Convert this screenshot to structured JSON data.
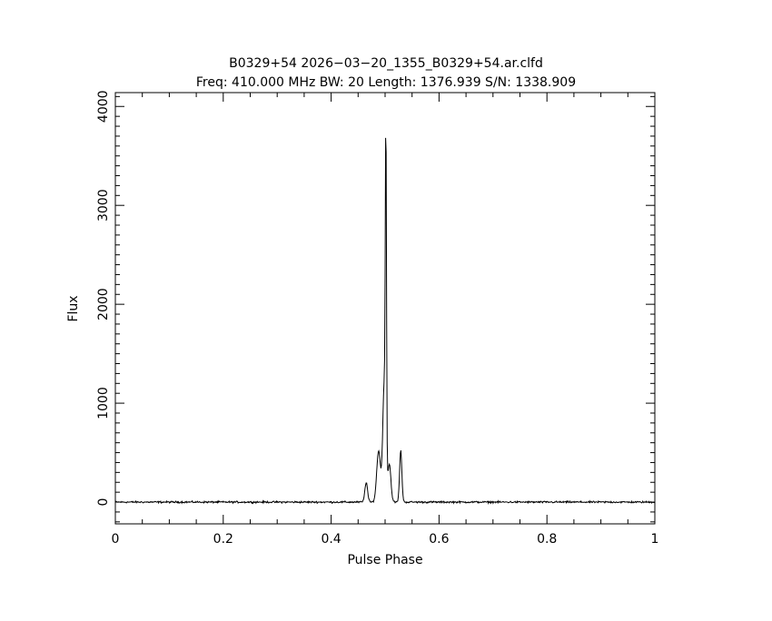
{
  "chart_data": {
    "type": "line",
    "title_line1": "B0329+54 2026−03−20_1355_B0329+54.ar.clfd",
    "title_line2": "Freq: 410.000 MHz BW: 20 Length: 1376.939 S/N: 1338.909",
    "xlabel": "Pulse Phase",
    "ylabel": "Flux",
    "xlim": [
      0,
      1
    ],
    "ylim": [
      -220,
      4140
    ],
    "x_ticks": [
      {
        "value": 0,
        "label": "0"
      },
      {
        "value": 0.2,
        "label": "0.2"
      },
      {
        "value": 0.4,
        "label": "0.4"
      },
      {
        "value": 0.6,
        "label": "0.6"
      },
      {
        "value": 0.8,
        "label": "0.8"
      },
      {
        "value": 1,
        "label": "1"
      }
    ],
    "y_ticks": [
      {
        "value": 0,
        "label": "0"
      },
      {
        "value": 1000,
        "label": "1000"
      },
      {
        "value": 2000,
        "label": "2000"
      },
      {
        "value": 3000,
        "label": "3000"
      },
      {
        "value": 4000,
        "label": "4000"
      }
    ],
    "x_minor_step": 0.05,
    "y_minor_step": 100,
    "grid": false,
    "line_color": "#000000",
    "baseline": 0,
    "components": [
      {
        "center": 0.465,
        "width": 0.0025,
        "amplitude": 200
      },
      {
        "center": 0.488,
        "width": 0.0035,
        "amplitude": 520
      },
      {
        "center": 0.4985,
        "width": 0.0028,
        "amplitude": 1200
      },
      {
        "center": 0.5015,
        "width": 0.0011,
        "amplitude": 3200
      },
      {
        "center": 0.508,
        "width": 0.0028,
        "amplitude": 380
      },
      {
        "center": 0.529,
        "width": 0.0021,
        "amplitude": 520
      }
    ],
    "series": [
      {
        "x": [
          0,
          0.1,
          0.2,
          0.3,
          0.4,
          0.45,
          0.46,
          0.465,
          0.47,
          0.48,
          0.485,
          0.488,
          0.49,
          0.495,
          0.498,
          0.5,
          0.502,
          0.505,
          0.51,
          0.515,
          0.52,
          0.525,
          0.529,
          0.535,
          0.54,
          0.55,
          0.6,
          0.7,
          0.8,
          0.9,
          1
        ],
        "y": [
          5,
          5,
          5,
          5,
          5,
          5,
          60,
          210,
          70,
          140,
          560,
          650,
          600,
          1000,
          1500,
          3950,
          3200,
          900,
          300,
          150,
          120,
          200,
          530,
          100,
          40,
          5,
          5,
          5,
          5,
          5,
          5
        ]
      }
    ]
  }
}
